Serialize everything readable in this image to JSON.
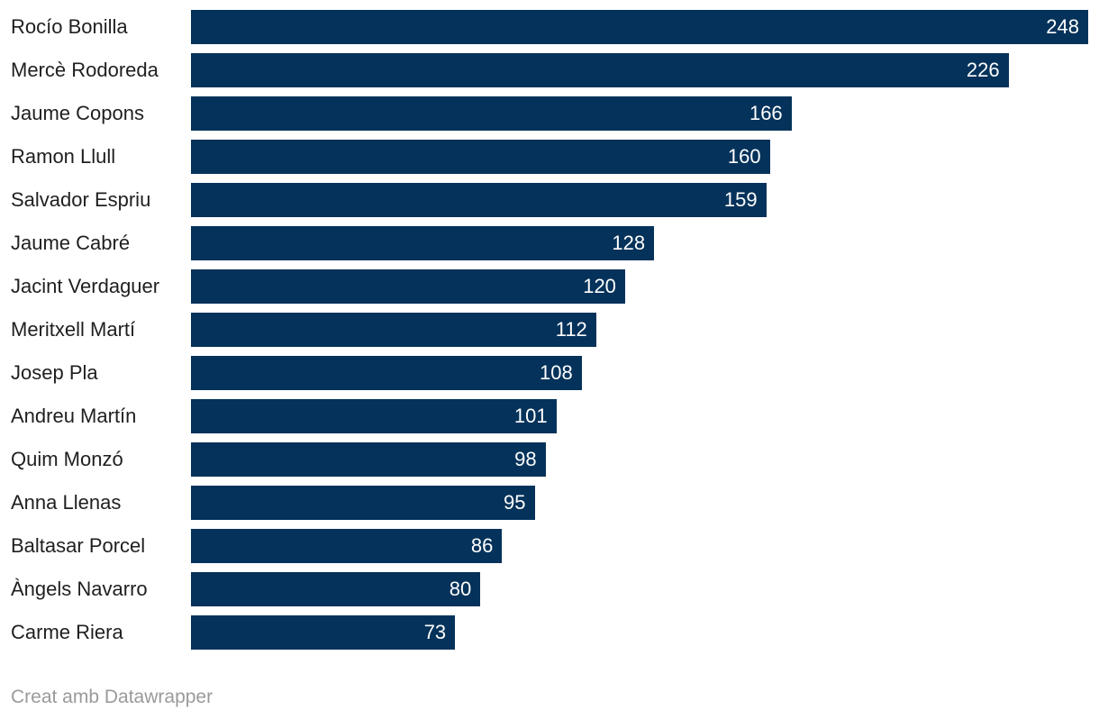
{
  "chart_data": {
    "type": "bar",
    "orientation": "horizontal",
    "title": "",
    "xlabel": "",
    "ylabel": "",
    "grid": false,
    "legend": false,
    "axis_ticks_visible": false,
    "value_labels_position": "inside-end",
    "max_value": 248,
    "bar_color": "#04325a",
    "value_label_color": "#ffffff",
    "category_label_color": "#1f1f1f",
    "categories": [
      "Rocío Bonilla",
      "Mercè Rodoreda",
      "Jaume Copons",
      "Ramon Llull",
      "Salvador Espriu",
      "Jaume Cabré",
      "Jacint Verdaguer",
      "Meritxell Martí",
      "Josep Pla",
      "Andreu Martín",
      "Quim Monzó",
      "Anna Llenas",
      "Baltasar Porcel",
      "Àngels Navarro",
      "Carme Riera"
    ],
    "values": [
      248,
      226,
      166,
      160,
      159,
      128,
      120,
      112,
      108,
      101,
      98,
      95,
      86,
      80,
      73
    ]
  },
  "footer": {
    "credit": "Creat amb Datawrapper",
    "credit_color": "#9a9a9a"
  }
}
